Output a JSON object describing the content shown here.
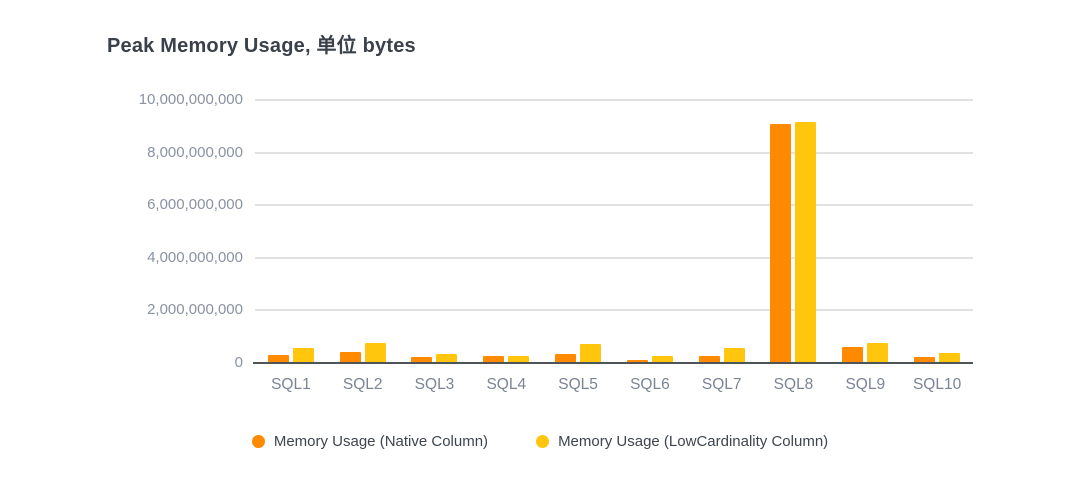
{
  "title": "Peak Memory Usage, 单位 bytes",
  "colors": {
    "native_orange": "#ff8a00",
    "lowcardinality_yellow": "#ffc60d",
    "gridline": "#e0e1e3",
    "axis_line": "#4f5459",
    "title_text": "#3a414b",
    "tick_text": "#8a92a2",
    "legend_text": "#3e454f"
  },
  "chart_data": {
    "type": "bar",
    "title": "Peak Memory Usage, 单位 bytes",
    "categories": [
      "SQL1",
      "SQL2",
      "SQL3",
      "SQL4",
      "SQL5",
      "SQL6",
      "SQL7",
      "SQL8",
      "SQL9",
      "SQL10"
    ],
    "series": [
      {
        "name": "Memory Usage (Native Column)",
        "color": "#ff8a00",
        "values": [
          320000000,
          430000000,
          220000000,
          260000000,
          340000000,
          130000000,
          260000000,
          9100000000,
          600000000,
          240000000
        ]
      },
      {
        "name": "Memory Usage (LowCardinality Column)",
        "color": "#ffc60d",
        "values": [
          590000000,
          750000000,
          360000000,
          280000000,
          730000000,
          260000000,
          570000000,
          9180000000,
          760000000,
          380000000
        ]
      }
    ],
    "xlabel": "",
    "ylabel": "",
    "ylim": [
      0,
      10000000000
    ],
    "ytick_values": [
      0,
      2000000000,
      4000000000,
      6000000000,
      8000000000,
      10000000000
    ],
    "ytick_labels": [
      "0",
      "2,000,000,000",
      "4,000,000,000",
      "6,000,000,000",
      "8,000,000,000",
      "10,000,000,000"
    ],
    "grid": true,
    "legend_position": "bottom"
  },
  "legend": {
    "items": [
      {
        "label": "Memory Usage (Native Column)",
        "color": "#ff8a00"
      },
      {
        "label": "Memory Usage (LowCardinality Column)",
        "color": "#ffc60d"
      }
    ]
  }
}
